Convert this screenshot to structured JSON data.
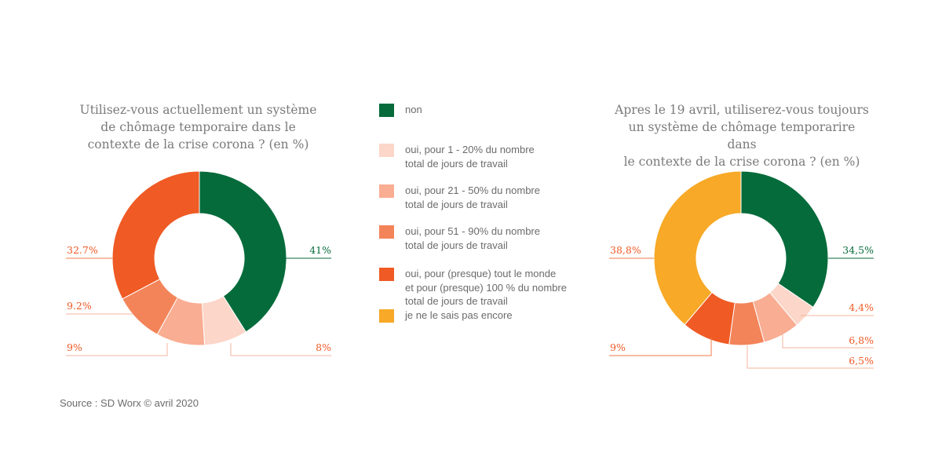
{
  "colors": {
    "non": "#066b3b",
    "pct_1_20": "#fcd6c9",
    "pct_21_50": "#f9ad92",
    "pct_51_90": "#f38459",
    "pct_100": "#ef5a25",
    "ne_sais_pas": "#f7a927"
  },
  "legend": [
    {
      "key": "non",
      "label": "non"
    },
    {
      "key": "pct_1_20",
      "label": "oui, pour 1 - 20% du nombre\ntotal de jours de travail"
    },
    {
      "key": "pct_21_50",
      "label": "oui, pour 21 - 50% du nombre\ntotal de jours de travail"
    },
    {
      "key": "pct_51_90",
      "label": "oui, pour 51 - 90% du nombre\ntotal de jours de travail"
    },
    {
      "key": "pct_100",
      "label": "oui, pour (presque) tout le monde\net pour (presque) 100 % du nombre\ntotal de jours de travail"
    },
    {
      "key": "ne_sais_pas",
      "label": "je ne le sais pas encore"
    }
  ],
  "source": "Source : SD Worx © avril 2020",
  "chart_data": [
    {
      "type": "pie",
      "donut": true,
      "title": "Utilisez-vous actuellement un système\nde chômage temporaire dans le\ncontexte de la crise corona ? (en %)",
      "slices": [
        {
          "key": "non",
          "value": 41,
          "label": "41%"
        },
        {
          "key": "pct_1_20",
          "value": 8,
          "label": "8%"
        },
        {
          "key": "pct_21_50",
          "value": 9,
          "label": "9%"
        },
        {
          "key": "pct_51_90",
          "value": 9.2,
          "label": "9.2%"
        },
        {
          "key": "pct_100",
          "value": 32.7,
          "label": "32.7%"
        }
      ]
    },
    {
      "type": "pie",
      "donut": true,
      "title": "Apres le 19 avril, utiliserez-vous toujours\nun système de chômage temporarire dans\nle contexte de la crise corona ? (en %)",
      "slices": [
        {
          "key": "non",
          "value": 34.5,
          "label": "34,5%"
        },
        {
          "key": "pct_1_20",
          "value": 4.4,
          "label": "4,4%"
        },
        {
          "key": "pct_21_50",
          "value": 6.8,
          "label": "6,8%"
        },
        {
          "key": "pct_51_90",
          "value": 6.5,
          "label": "6,5%"
        },
        {
          "key": "pct_100",
          "value": 9,
          "label": "9%"
        },
        {
          "key": "ne_sais_pas",
          "value": 38.8,
          "label": "38,8%"
        }
      ]
    }
  ]
}
